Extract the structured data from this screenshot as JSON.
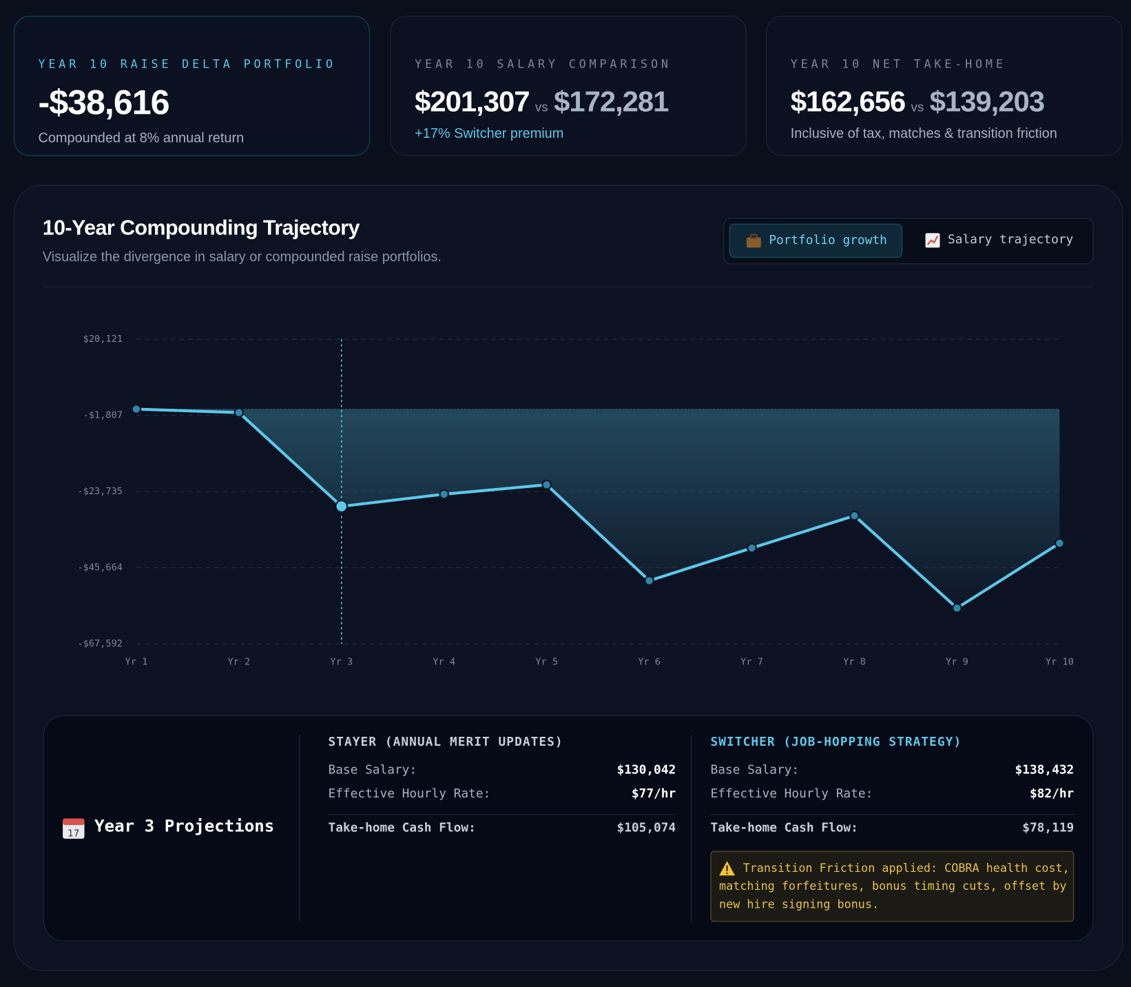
{
  "cards": [
    {
      "label": "YEAR 10 RAISE DELTA PORTFOLIO",
      "value": "-$38,616",
      "note": "Compounded at 8% annual return"
    },
    {
      "label": "YEAR 10 SALARY COMPARISON",
      "value": "$201,307",
      "vs": "vs",
      "compare": "$172,281",
      "note": "+17% Switcher premium"
    },
    {
      "label": "YEAR 10 NET TAKE-HOME",
      "value": "$162,656",
      "vs": "vs",
      "compare": "$139,203",
      "note": "Inclusive of tax, matches & transition friction"
    }
  ],
  "panel": {
    "title": "10-Year Compounding Trajectory",
    "subtitle": "Visualize the divergence in salary or compounded raise portfolios.",
    "toggles": [
      "Portfolio growth",
      "Salary trajectory"
    ]
  },
  "chart_data": {
    "type": "line",
    "categories": [
      "Yr 1",
      "Yr 2",
      "Yr 3",
      "Yr 4",
      "Yr 5",
      "Yr 6",
      "Yr 7",
      "Yr 8",
      "Yr 9",
      "Yr 10"
    ],
    "values": [
      0,
      -1000,
      -28000,
      -24500,
      -21800,
      -49400,
      -40000,
      -30700,
      -57300,
      -38616
    ],
    "color": "#5cc8e8",
    "ylim": [
      -67592,
      20121
    ],
    "yticks": [
      {
        "value": -67592,
        "label": "-$67,592"
      },
      {
        "value": -45664,
        "label": "-$45,664"
      },
      {
        "value": -23735,
        "label": "-$23,735"
      },
      {
        "value": -1807,
        "label": "-$1,807"
      },
      {
        "value": 20121,
        "label": "$20,121"
      }
    ],
    "grid": true
  },
  "projections": {
    "title": "Year 3 Projections",
    "stayer": {
      "heading": "STAYER (ANNUAL MERIT UPDATES)",
      "rows": [
        [
          "Base Salary:",
          "$130,042"
        ],
        [
          "Effective Hourly Rate:",
          "$77/hr"
        ]
      ],
      "total": [
        "Take-home Cash Flow:",
        "$105,074"
      ]
    },
    "switcher": {
      "heading": "SWITCHER (JOB-HOPPING STRATEGY)",
      "rows": [
        [
          "Base Salary:",
          "$138,432"
        ],
        [
          "Effective Hourly Rate:",
          "$82/hr"
        ]
      ],
      "total": [
        "Take-home Cash Flow:",
        "$78,119"
      ],
      "warning": "Transition Friction applied: COBRA health cost, matching forfeitures, bonus timing cuts, offset by new hire signing bonus."
    }
  }
}
